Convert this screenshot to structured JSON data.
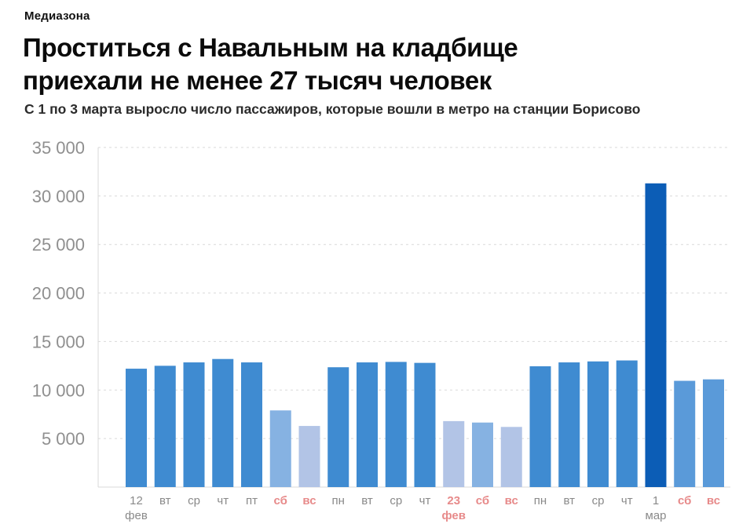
{
  "source": "Медиазона",
  "title_line1": "Проститься с Навальным на кладбище",
  "title_line2": "приехали не менее 27 тысяч человек",
  "subtitle": "С 1 по 3 марта выросло число пассажиров, которые вошли в метро на станции Борисово",
  "chart_data": {
    "type": "bar",
    "title": "Проститься с Навальным на кладбище приехали не менее 27 тысяч человек",
    "subtitle": "С 1 по 3 марта выросло число пассажиров, которые вошли в метро на станции Борисово",
    "xlabel": "",
    "ylabel": "",
    "ylim": [
      0,
      35000
    ],
    "yticks": [
      5000,
      10000,
      15000,
      20000,
      25000,
      30000,
      35000
    ],
    "ytick_labels": [
      "5 000",
      "10 000",
      "15 000",
      "20 000",
      "25 000",
      "30 000",
      "35 000"
    ],
    "grid": true,
    "categories": [
      [
        "12",
        "фев"
      ],
      [
        "вт"
      ],
      [
        "ср"
      ],
      [
        "чт"
      ],
      [
        "пт"
      ],
      [
        "сб"
      ],
      [
        "вс"
      ],
      [
        "пн"
      ],
      [
        "вт"
      ],
      [
        "ср"
      ],
      [
        "чт"
      ],
      [
        "23",
        "фев"
      ],
      [
        "сб"
      ],
      [
        "вс"
      ],
      [
        "пн"
      ],
      [
        "вт"
      ],
      [
        "ср"
      ],
      [
        "чт"
      ],
      [
        "1",
        "мар"
      ],
      [
        "сб"
      ],
      [
        "вс"
      ]
    ],
    "values": [
      12200,
      12500,
      12850,
      13200,
      12850,
      7900,
      6300,
      12350,
      12850,
      12900,
      12800,
      6800,
      6650,
      6200,
      12450,
      12850,
      12950,
      13050,
      31300,
      10950,
      11100
    ],
    "day_type": [
      "weekday",
      "weekday",
      "weekday",
      "weekday",
      "weekday",
      "saturday",
      "sunday",
      "weekday",
      "weekday",
      "weekday",
      "weekday",
      "holiday",
      "saturday",
      "sunday",
      "weekday",
      "weekday",
      "weekday",
      "weekday",
      "funeral",
      "saturday",
      "sunday"
    ],
    "label_highlight": [
      false,
      false,
      false,
      false,
      false,
      true,
      true,
      false,
      false,
      false,
      false,
      true,
      true,
      true,
      false,
      false,
      false,
      false,
      false,
      true,
      true
    ],
    "colors": {
      "weekday": "#3f8bd1",
      "saturday": "#86b2e2",
      "sunday": "#b2c4e6",
      "holiday": "#b2c4e6",
      "funeral": "#0c5db6",
      "post_funeral": "#5a9ad9",
      "weekend_label": "#e78a8a",
      "tick_label": "#8a8a8a",
      "grid": "#d9d9d9"
    }
  }
}
